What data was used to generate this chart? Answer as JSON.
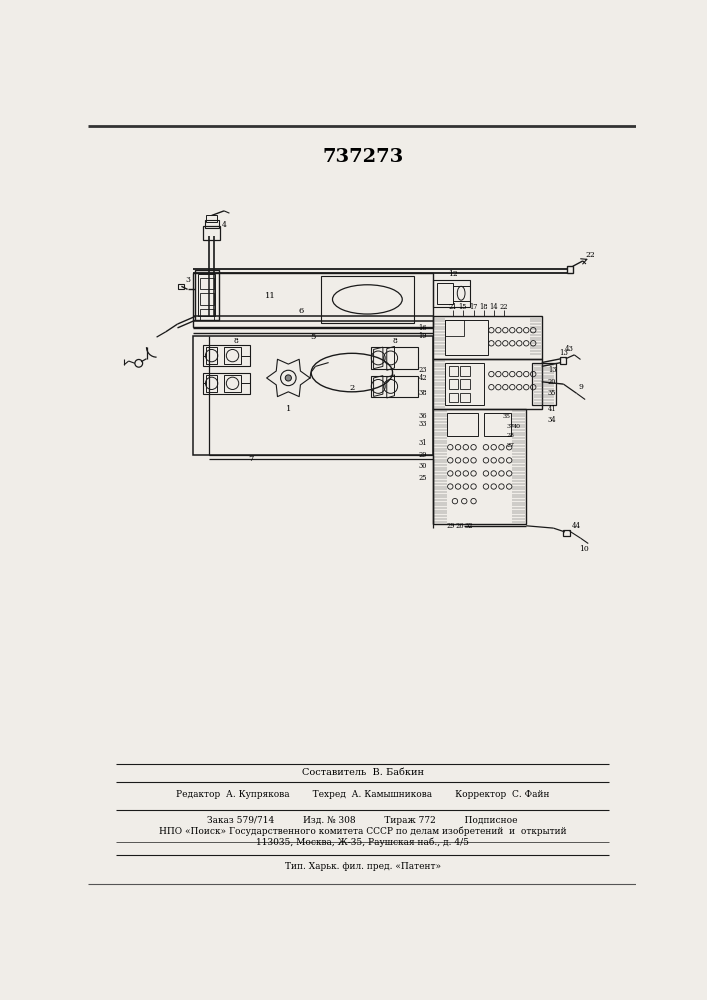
{
  "title": "737273",
  "bg_color": "#f0ede8",
  "line_color": "#1a1a1a",
  "footer_lines": [
    "Составитель  В. Бабкин",
    "Редактор  А. Купрякова        Техред  А. Камышникова        Корректор  С. Файн",
    "Заказ 579/714          Изд. № 308          Тираж 772          Подписное",
    "НПО «Поиск» Государственного комитета СССР по делам изобретений  и  открытий",
    "113035, Москва, Ж-35, Раушская наб., д. 4/5",
    "Тип. Харьк. фил. пред. «Патент»"
  ]
}
